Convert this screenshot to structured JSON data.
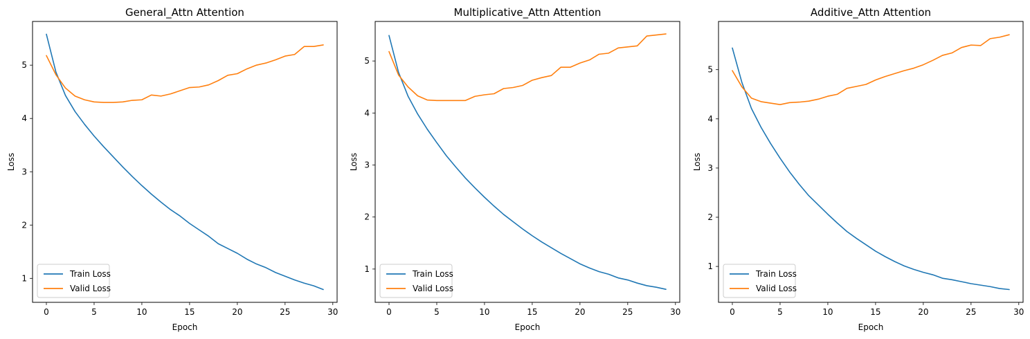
{
  "chart_data": [
    {
      "type": "line",
      "title": "General_Attn Attention",
      "xlabel": "Epoch",
      "ylabel": "Loss",
      "xlim": [
        -1.45,
        30.45
      ],
      "ylim": [
        0.55,
        5.82
      ],
      "xticks": [
        0,
        5,
        10,
        15,
        20,
        25,
        30
      ],
      "yticks": [
        1,
        2,
        3,
        4,
        5
      ],
      "legend": "lower-left",
      "x": [
        0,
        1,
        2,
        3,
        4,
        5,
        6,
        7,
        8,
        9,
        10,
        11,
        12,
        13,
        14,
        15,
        16,
        17,
        18,
        19,
        20,
        21,
        22,
        23,
        24,
        25,
        26,
        27,
        28,
        29
      ],
      "series": [
        {
          "name": "Train Loss",
          "color": "#1f77b4",
          "values": [
            5.58,
            4.87,
            4.43,
            4.13,
            3.89,
            3.67,
            3.47,
            3.28,
            3.09,
            2.91,
            2.74,
            2.58,
            2.43,
            2.29,
            2.17,
            2.03,
            1.91,
            1.79,
            1.65,
            1.56,
            1.47,
            1.36,
            1.27,
            1.2,
            1.11,
            1.04,
            0.97,
            0.91,
            0.86,
            0.79
          ]
        },
        {
          "name": "Valid Loss",
          "color": "#ff7f0e",
          "values": [
            5.18,
            4.82,
            4.57,
            4.42,
            4.35,
            4.31,
            4.3,
            4.3,
            4.31,
            4.34,
            4.35,
            4.44,
            4.42,
            4.46,
            4.52,
            4.58,
            4.59,
            4.63,
            4.71,
            4.81,
            4.84,
            4.93,
            5.0,
            5.04,
            5.1,
            5.17,
            5.2,
            5.35,
            5.35,
            5.38
          ]
        }
      ]
    },
    {
      "type": "line",
      "title": "Multiplicative_Attn Attention",
      "xlabel": "Epoch",
      "ylabel": "Loss",
      "xlim": [
        -1.45,
        30.45
      ],
      "ylim": [
        0.36,
        5.76
      ],
      "xticks": [
        0,
        5,
        10,
        15,
        20,
        25,
        30
      ],
      "yticks": [
        1,
        2,
        3,
        4,
        5
      ],
      "legend": "lower-left",
      "x": [
        0,
        1,
        2,
        3,
        4,
        5,
        6,
        7,
        8,
        9,
        10,
        11,
        12,
        13,
        14,
        15,
        16,
        17,
        18,
        19,
        20,
        21,
        22,
        23,
        24,
        25,
        26,
        27,
        28,
        29
      ],
      "series": [
        {
          "name": "Train Loss",
          "color": "#1f77b4",
          "values": [
            5.49,
            4.78,
            4.32,
            3.98,
            3.69,
            3.43,
            3.18,
            2.96,
            2.75,
            2.56,
            2.38,
            2.21,
            2.05,
            1.91,
            1.77,
            1.64,
            1.52,
            1.41,
            1.3,
            1.2,
            1.1,
            1.02,
            0.95,
            0.9,
            0.83,
            0.79,
            0.73,
            0.68,
            0.65,
            0.61
          ]
        },
        {
          "name": "Valid Loss",
          "color": "#ff7f0e",
          "values": [
            5.18,
            4.73,
            4.5,
            4.33,
            4.25,
            4.24,
            4.24,
            4.24,
            4.24,
            4.32,
            4.35,
            4.37,
            4.47,
            4.49,
            4.53,
            4.63,
            4.68,
            4.72,
            4.88,
            4.88,
            4.96,
            5.02,
            5.13,
            5.15,
            5.25,
            5.27,
            5.29,
            5.48,
            5.5,
            5.52
          ]
        }
      ]
    },
    {
      "type": "line",
      "title": "Additive_Attn Attention",
      "xlabel": "Epoch",
      "ylabel": "Loss",
      "xlim": [
        -1.45,
        30.45
      ],
      "ylim": [
        0.27,
        5.98
      ],
      "xticks": [
        0,
        5,
        10,
        15,
        20,
        25,
        30
      ],
      "yticks": [
        1,
        2,
        3,
        4,
        5
      ],
      "legend": "lower-left",
      "x": [
        0,
        1,
        2,
        3,
        4,
        5,
        6,
        7,
        8,
        9,
        10,
        11,
        12,
        13,
        14,
        15,
        16,
        17,
        18,
        19,
        20,
        21,
        22,
        23,
        24,
        25,
        26,
        27,
        28,
        29
      ],
      "series": [
        {
          "name": "Train Loss",
          "color": "#1f77b4",
          "values": [
            5.44,
            4.74,
            4.21,
            3.83,
            3.5,
            3.2,
            2.92,
            2.67,
            2.44,
            2.25,
            2.06,
            1.88,
            1.71,
            1.57,
            1.44,
            1.31,
            1.2,
            1.1,
            1.01,
            0.94,
            0.88,
            0.83,
            0.76,
            0.73,
            0.69,
            0.65,
            0.62,
            0.59,
            0.55,
            0.53
          ]
        },
        {
          "name": "Valid Loss",
          "color": "#ff7f0e",
          "values": [
            4.98,
            4.65,
            4.42,
            4.35,
            4.32,
            4.29,
            4.33,
            4.34,
            4.36,
            4.4,
            4.46,
            4.5,
            4.62,
            4.66,
            4.7,
            4.79,
            4.86,
            4.92,
            4.98,
            5.03,
            5.1,
            5.19,
            5.29,
            5.34,
            5.45,
            5.5,
            5.49,
            5.63,
            5.66,
            5.71
          ]
        }
      ]
    }
  ]
}
